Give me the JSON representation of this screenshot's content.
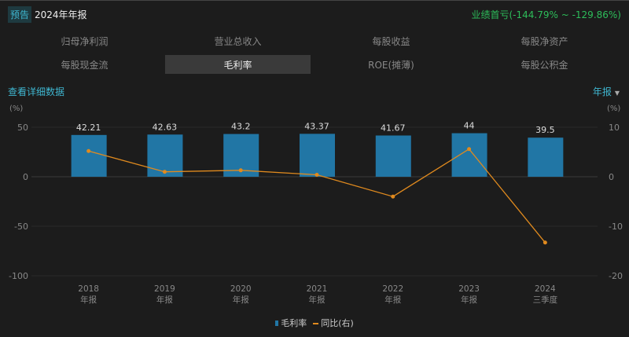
{
  "header": {
    "badge": "预告",
    "title": "2024年年报",
    "forecast": "业绩首亏(-144.79% ~ -129.86%)"
  },
  "tabs": [
    {
      "label": "归母净利润"
    },
    {
      "label": "营业总收入"
    },
    {
      "label": "每股收益"
    },
    {
      "label": "每股净资产"
    },
    {
      "label": "每股现金流"
    },
    {
      "label": "毛利率",
      "active": true
    },
    {
      "label": "ROE(摊薄)"
    },
    {
      "label": "每股公积金"
    }
  ],
  "detail_link": "查看详细数据",
  "period_select": "年报",
  "colors": {
    "bar": "#2176a5",
    "line": "#e08a1e",
    "accent": "#3fb6d0",
    "forecast": "#2dbd5a"
  },
  "chart_data": {
    "type": "bar",
    "categories": [
      [
        "2018",
        "年报"
      ],
      [
        "2019",
        "年报"
      ],
      [
        "2020",
        "年报"
      ],
      [
        "2021",
        "年报"
      ],
      [
        "2022",
        "年报"
      ],
      [
        "2023",
        "年报"
      ],
      [
        "2024",
        "三季度"
      ]
    ],
    "series": [
      {
        "name": "毛利率",
        "type": "bar",
        "axis": "left",
        "values": [
          42.21,
          42.63,
          43.2,
          43.37,
          41.67,
          44,
          39.5
        ],
        "labels": [
          "42.21",
          "42.63",
          "43.2",
          "43.37",
          "41.67",
          "44",
          "39.5"
        ]
      },
      {
        "name": "同比(右)",
        "type": "line",
        "axis": "right",
        "values": [
          5.2,
          1.0,
          1.3,
          0.4,
          -4.0,
          5.6,
          -13.3
        ]
      }
    ],
    "left_axis": {
      "unit": "(%)",
      "ylim": [
        -100,
        50
      ],
      "ticks": [
        "50",
        "0",
        "-50",
        "-100"
      ]
    },
    "right_axis": {
      "unit": "(%)",
      "ylim": [
        -20,
        10
      ],
      "ticks": [
        "10",
        "0",
        "-10",
        "-20"
      ]
    },
    "legend": [
      "毛利率",
      "同比(右)"
    ],
    "legend_position": "bottom"
  }
}
